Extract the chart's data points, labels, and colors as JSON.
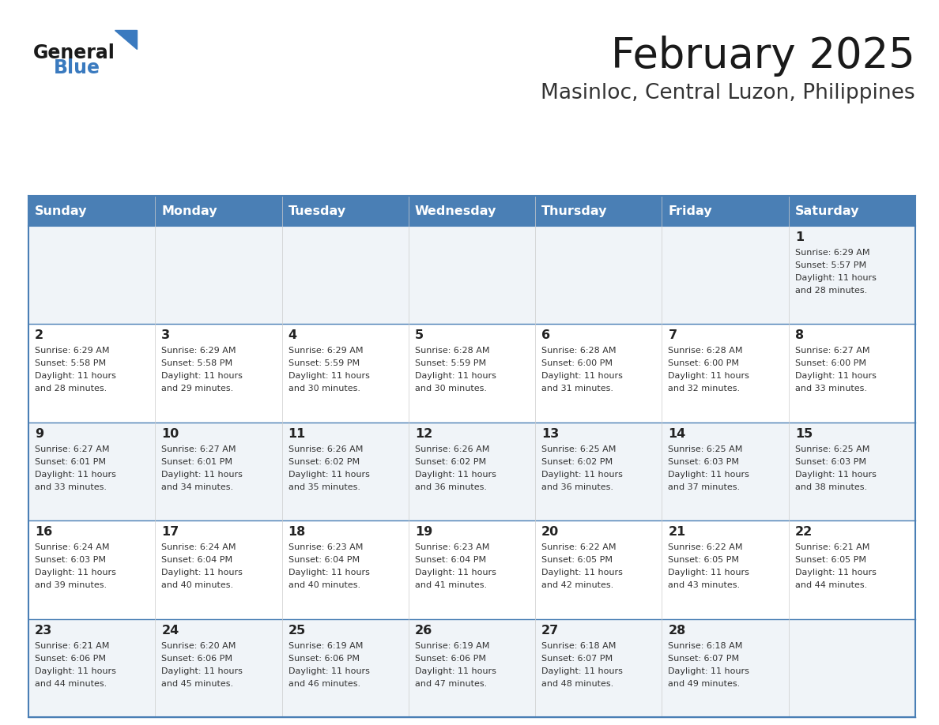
{
  "title": "February 2025",
  "subtitle": "Masinloc, Central Luzon, Philippines",
  "days_of_week": [
    "Sunday",
    "Monday",
    "Tuesday",
    "Wednesday",
    "Thursday",
    "Friday",
    "Saturday"
  ],
  "header_bg": "#4a7fb5",
  "header_text": "#ffffff",
  "row_bg_light": "#f0f4f8",
  "row_bg_white": "#ffffff",
  "border_color": "#4a7fb5",
  "row_line_color": "#4a7fb5",
  "col_line_color": "#cccccc",
  "title_color": "#1a1a1a",
  "subtitle_color": "#333333",
  "day_number_color": "#222222",
  "cell_text_color": "#333333",
  "logo_general_color": "#1a1a1a",
  "logo_blue_color": "#3a7abf",
  "logo_triangle_color": "#3a7abf",
  "calendar_data": [
    {
      "day": 1,
      "col": 6,
      "row": 0,
      "sunrise": "6:29 AM",
      "sunset": "5:57 PM",
      "daylight_hours": 11,
      "daylight_minutes": 28
    },
    {
      "day": 2,
      "col": 0,
      "row": 1,
      "sunrise": "6:29 AM",
      "sunset": "5:58 PM",
      "daylight_hours": 11,
      "daylight_minutes": 28
    },
    {
      "day": 3,
      "col": 1,
      "row": 1,
      "sunrise": "6:29 AM",
      "sunset": "5:58 PM",
      "daylight_hours": 11,
      "daylight_minutes": 29
    },
    {
      "day": 4,
      "col": 2,
      "row": 1,
      "sunrise": "6:29 AM",
      "sunset": "5:59 PM",
      "daylight_hours": 11,
      "daylight_minutes": 30
    },
    {
      "day": 5,
      "col": 3,
      "row": 1,
      "sunrise": "6:28 AM",
      "sunset": "5:59 PM",
      "daylight_hours": 11,
      "daylight_minutes": 30
    },
    {
      "day": 6,
      "col": 4,
      "row": 1,
      "sunrise": "6:28 AM",
      "sunset": "6:00 PM",
      "daylight_hours": 11,
      "daylight_minutes": 31
    },
    {
      "day": 7,
      "col": 5,
      "row": 1,
      "sunrise": "6:28 AM",
      "sunset": "6:00 PM",
      "daylight_hours": 11,
      "daylight_minutes": 32
    },
    {
      "day": 8,
      "col": 6,
      "row": 1,
      "sunrise": "6:27 AM",
      "sunset": "6:00 PM",
      "daylight_hours": 11,
      "daylight_minutes": 33
    },
    {
      "day": 9,
      "col": 0,
      "row": 2,
      "sunrise": "6:27 AM",
      "sunset": "6:01 PM",
      "daylight_hours": 11,
      "daylight_minutes": 33
    },
    {
      "day": 10,
      "col": 1,
      "row": 2,
      "sunrise": "6:27 AM",
      "sunset": "6:01 PM",
      "daylight_hours": 11,
      "daylight_minutes": 34
    },
    {
      "day": 11,
      "col": 2,
      "row": 2,
      "sunrise": "6:26 AM",
      "sunset": "6:02 PM",
      "daylight_hours": 11,
      "daylight_minutes": 35
    },
    {
      "day": 12,
      "col": 3,
      "row": 2,
      "sunrise": "6:26 AM",
      "sunset": "6:02 PM",
      "daylight_hours": 11,
      "daylight_minutes": 36
    },
    {
      "day": 13,
      "col": 4,
      "row": 2,
      "sunrise": "6:25 AM",
      "sunset": "6:02 PM",
      "daylight_hours": 11,
      "daylight_minutes": 36
    },
    {
      "day": 14,
      "col": 5,
      "row": 2,
      "sunrise": "6:25 AM",
      "sunset": "6:03 PM",
      "daylight_hours": 11,
      "daylight_minutes": 37
    },
    {
      "day": 15,
      "col": 6,
      "row": 2,
      "sunrise": "6:25 AM",
      "sunset": "6:03 PM",
      "daylight_hours": 11,
      "daylight_minutes": 38
    },
    {
      "day": 16,
      "col": 0,
      "row": 3,
      "sunrise": "6:24 AM",
      "sunset": "6:03 PM",
      "daylight_hours": 11,
      "daylight_minutes": 39
    },
    {
      "day": 17,
      "col": 1,
      "row": 3,
      "sunrise": "6:24 AM",
      "sunset": "6:04 PM",
      "daylight_hours": 11,
      "daylight_minutes": 40
    },
    {
      "day": 18,
      "col": 2,
      "row": 3,
      "sunrise": "6:23 AM",
      "sunset": "6:04 PM",
      "daylight_hours": 11,
      "daylight_minutes": 40
    },
    {
      "day": 19,
      "col": 3,
      "row": 3,
      "sunrise": "6:23 AM",
      "sunset": "6:04 PM",
      "daylight_hours": 11,
      "daylight_minutes": 41
    },
    {
      "day": 20,
      "col": 4,
      "row": 3,
      "sunrise": "6:22 AM",
      "sunset": "6:05 PM",
      "daylight_hours": 11,
      "daylight_minutes": 42
    },
    {
      "day": 21,
      "col": 5,
      "row": 3,
      "sunrise": "6:22 AM",
      "sunset": "6:05 PM",
      "daylight_hours": 11,
      "daylight_minutes": 43
    },
    {
      "day": 22,
      "col": 6,
      "row": 3,
      "sunrise": "6:21 AM",
      "sunset": "6:05 PM",
      "daylight_hours": 11,
      "daylight_minutes": 44
    },
    {
      "day": 23,
      "col": 0,
      "row": 4,
      "sunrise": "6:21 AM",
      "sunset": "6:06 PM",
      "daylight_hours": 11,
      "daylight_minutes": 44
    },
    {
      "day": 24,
      "col": 1,
      "row": 4,
      "sunrise": "6:20 AM",
      "sunset": "6:06 PM",
      "daylight_hours": 11,
      "daylight_minutes": 45
    },
    {
      "day": 25,
      "col": 2,
      "row": 4,
      "sunrise": "6:19 AM",
      "sunset": "6:06 PM",
      "daylight_hours": 11,
      "daylight_minutes": 46
    },
    {
      "day": 26,
      "col": 3,
      "row": 4,
      "sunrise": "6:19 AM",
      "sunset": "6:06 PM",
      "daylight_hours": 11,
      "daylight_minutes": 47
    },
    {
      "day": 27,
      "col": 4,
      "row": 4,
      "sunrise": "6:18 AM",
      "sunset": "6:07 PM",
      "daylight_hours": 11,
      "daylight_minutes": 48
    },
    {
      "day": 28,
      "col": 5,
      "row": 4,
      "sunrise": "6:18 AM",
      "sunset": "6:07 PM",
      "daylight_hours": 11,
      "daylight_minutes": 49
    }
  ],
  "num_rows": 5,
  "num_cols": 7,
  "figsize": [
    11.88,
    9.18
  ],
  "dpi": 100
}
